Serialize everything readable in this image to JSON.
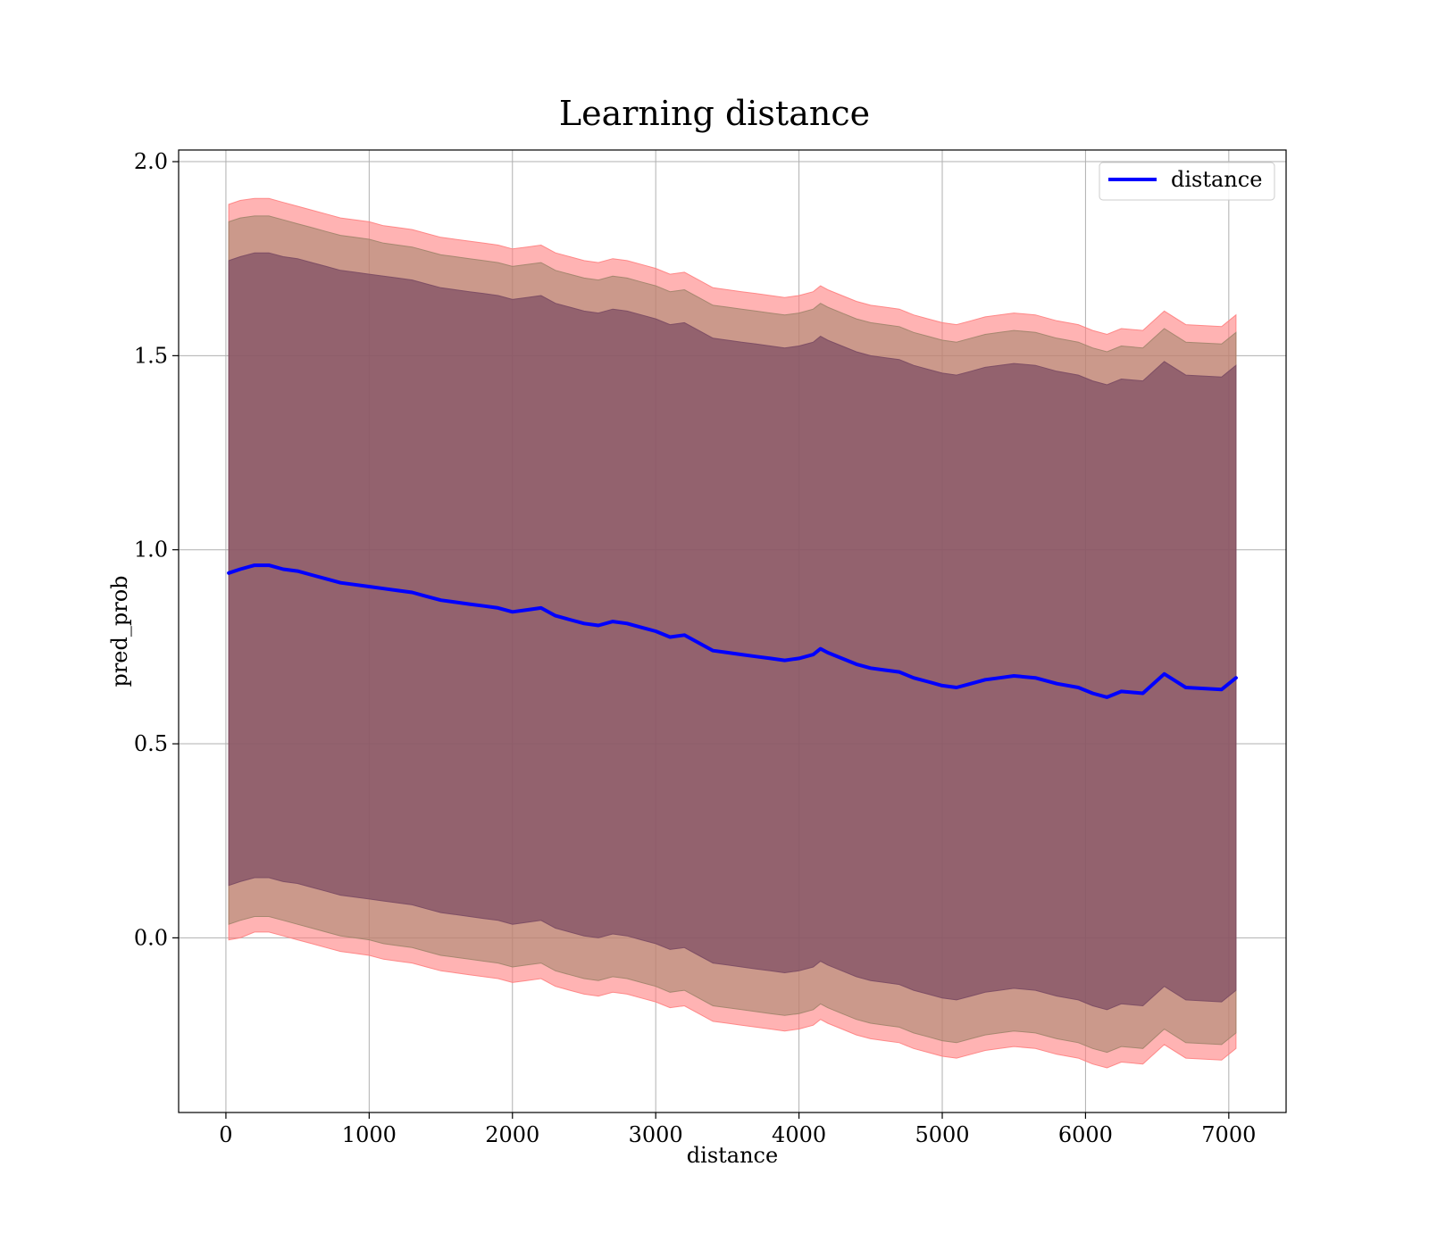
{
  "chart_data": {
    "type": "line",
    "title": "Learning distance",
    "xlabel": "distance",
    "ylabel": "pred_prob",
    "xlim": [
      -330,
      7400
    ],
    "ylim": [
      -0.45,
      2.03
    ],
    "grid": true,
    "legend_position": "top-right",
    "xticks": [
      0,
      1000,
      2000,
      3000,
      4000,
      5000,
      6000,
      7000
    ],
    "xtick_labels": [
      "0",
      "1000",
      "2000",
      "3000",
      "4000",
      "5000",
      "6000",
      "7000"
    ],
    "yticks": [
      0.0,
      0.5,
      1.0,
      1.5,
      2.0
    ],
    "ytick_labels": [
      "0.0",
      "0.5",
      "1.0",
      "1.5",
      "2.0"
    ],
    "series": [
      {
        "name": "distance",
        "color": "#0000ff",
        "x": [
          20,
          100,
          200,
          300,
          400,
          500,
          600,
          700,
          800,
          900,
          1000,
          1100,
          1200,
          1300,
          1400,
          1500,
          1600,
          1700,
          1800,
          1900,
          2000,
          2100,
          2200,
          2300,
          2400,
          2500,
          2600,
          2700,
          2800,
          2900,
          3000,
          3100,
          3200,
          3300,
          3400,
          3500,
          3600,
          3700,
          3800,
          3900,
          4000,
          4100,
          4150,
          4200,
          4300,
          4400,
          4500,
          4600,
          4700,
          4800,
          4900,
          5000,
          5100,
          5200,
          5300,
          5400,
          5500,
          5650,
          5800,
          5950,
          6050,
          6150,
          6250,
          6400,
          6550,
          6700,
          6950,
          7050
        ],
        "y": [
          0.94,
          0.95,
          0.96,
          0.96,
          0.95,
          0.945,
          0.935,
          0.925,
          0.915,
          0.91,
          0.905,
          0.9,
          0.895,
          0.89,
          0.88,
          0.87,
          0.865,
          0.86,
          0.855,
          0.85,
          0.84,
          0.845,
          0.85,
          0.83,
          0.82,
          0.81,
          0.805,
          0.815,
          0.81,
          0.8,
          0.79,
          0.775,
          0.78,
          0.76,
          0.74,
          0.735,
          0.73,
          0.725,
          0.72,
          0.715,
          0.72,
          0.73,
          0.745,
          0.735,
          0.72,
          0.705,
          0.695,
          0.69,
          0.685,
          0.67,
          0.66,
          0.65,
          0.645,
          0.655,
          0.665,
          0.67,
          0.675,
          0.67,
          0.655,
          0.645,
          0.63,
          0.62,
          0.635,
          0.63,
          0.68,
          0.645,
          0.64,
          0.67
        ]
      }
    ],
    "bands": [
      {
        "color": "#ff8080",
        "opacity": 0.6,
        "upper": [
          1.89,
          1.9,
          1.905,
          1.905,
          1.895,
          1.885,
          1.875,
          1.865,
          1.855,
          1.85,
          1.845,
          1.835,
          1.83,
          1.825,
          1.815,
          1.805,
          1.8,
          1.795,
          1.79,
          1.785,
          1.775,
          1.78,
          1.785,
          1.765,
          1.755,
          1.745,
          1.74,
          1.75,
          1.745,
          1.735,
          1.725,
          1.71,
          1.715,
          1.695,
          1.675,
          1.67,
          1.665,
          1.66,
          1.655,
          1.65,
          1.655,
          1.665,
          1.68,
          1.67,
          1.655,
          1.64,
          1.63,
          1.625,
          1.62,
          1.605,
          1.595,
          1.585,
          1.58,
          1.59,
          1.6,
          1.605,
          1.61,
          1.605,
          1.59,
          1.58,
          1.565,
          1.555,
          1.57,
          1.565,
          1.615,
          1.58,
          1.575,
          1.605
        ],
        "lower": [
          -0.005,
          -0.0,
          0.015,
          0.015,
          0.005,
          -0.005,
          -0.015,
          -0.025,
          -0.035,
          -0.04,
          -0.045,
          -0.055,
          -0.06,
          -0.065,
          -0.075,
          -0.085,
          -0.09,
          -0.095,
          -0.1,
          -0.105,
          -0.115,
          -0.11,
          -0.105,
          -0.125,
          -0.135,
          -0.145,
          -0.15,
          -0.14,
          -0.145,
          -0.155,
          -0.165,
          -0.18,
          -0.175,
          -0.195,
          -0.215,
          -0.22,
          -0.225,
          -0.23,
          -0.235,
          -0.24,
          -0.235,
          -0.225,
          -0.21,
          -0.22,
          -0.235,
          -0.25,
          -0.26,
          -0.265,
          -0.27,
          -0.285,
          -0.295,
          -0.305,
          -0.31,
          -0.3,
          -0.29,
          -0.285,
          -0.28,
          -0.285,
          -0.3,
          -0.31,
          -0.325,
          -0.335,
          -0.32,
          -0.325,
          -0.275,
          -0.31,
          -0.315,
          -0.285
        ]
      },
      {
        "color": "#a0846a",
        "opacity": 0.55,
        "upper": [
          1.845,
          1.855,
          1.86,
          1.86,
          1.85,
          1.84,
          1.83,
          1.82,
          1.81,
          1.805,
          1.8,
          1.79,
          1.785,
          1.78,
          1.77,
          1.76,
          1.755,
          1.75,
          1.745,
          1.74,
          1.73,
          1.735,
          1.74,
          1.72,
          1.71,
          1.7,
          1.695,
          1.705,
          1.7,
          1.69,
          1.68,
          1.665,
          1.67,
          1.65,
          1.63,
          1.625,
          1.62,
          1.615,
          1.61,
          1.605,
          1.61,
          1.62,
          1.635,
          1.625,
          1.61,
          1.595,
          1.585,
          1.58,
          1.575,
          1.56,
          1.55,
          1.54,
          1.535,
          1.545,
          1.555,
          1.56,
          1.565,
          1.56,
          1.545,
          1.535,
          1.52,
          1.51,
          1.525,
          1.52,
          1.57,
          1.535,
          1.53,
          1.56
        ],
        "lower": [
          0.035,
          0.045,
          0.055,
          0.055,
          0.045,
          0.035,
          0.025,
          0.015,
          0.005,
          0.0,
          -0.005,
          -0.015,
          -0.02,
          -0.025,
          -0.035,
          -0.045,
          -0.05,
          -0.055,
          -0.06,
          -0.065,
          -0.075,
          -0.07,
          -0.065,
          -0.085,
          -0.095,
          -0.105,
          -0.11,
          -0.1,
          -0.105,
          -0.115,
          -0.125,
          -0.14,
          -0.135,
          -0.155,
          -0.175,
          -0.18,
          -0.185,
          -0.19,
          -0.195,
          -0.2,
          -0.195,
          -0.185,
          -0.17,
          -0.18,
          -0.195,
          -0.21,
          -0.22,
          -0.225,
          -0.23,
          -0.245,
          -0.255,
          -0.265,
          -0.27,
          -0.26,
          -0.25,
          -0.245,
          -0.24,
          -0.245,
          -0.26,
          -0.27,
          -0.285,
          -0.295,
          -0.28,
          -0.285,
          -0.235,
          -0.27,
          -0.275,
          -0.245
        ]
      },
      {
        "color": "#7a4a63",
        "opacity": 0.7,
        "upper": [
          1.745,
          1.755,
          1.765,
          1.765,
          1.755,
          1.75,
          1.74,
          1.73,
          1.72,
          1.715,
          1.71,
          1.705,
          1.7,
          1.695,
          1.685,
          1.675,
          1.67,
          1.665,
          1.66,
          1.655,
          1.645,
          1.65,
          1.655,
          1.635,
          1.625,
          1.615,
          1.61,
          1.62,
          1.615,
          1.605,
          1.595,
          1.58,
          1.585,
          1.565,
          1.545,
          1.54,
          1.535,
          1.53,
          1.525,
          1.52,
          1.525,
          1.535,
          1.55,
          1.54,
          1.525,
          1.51,
          1.5,
          1.495,
          1.49,
          1.475,
          1.465,
          1.455,
          1.45,
          1.46,
          1.47,
          1.475,
          1.48,
          1.475,
          1.46,
          1.45,
          1.435,
          1.425,
          1.44,
          1.435,
          1.485,
          1.45,
          1.445,
          1.475
        ],
        "lower": [
          0.135,
          0.145,
          0.155,
          0.155,
          0.145,
          0.14,
          0.13,
          0.12,
          0.11,
          0.105,
          0.1,
          0.095,
          0.09,
          0.085,
          0.075,
          0.065,
          0.06,
          0.055,
          0.05,
          0.045,
          0.035,
          0.04,
          0.045,
          0.025,
          0.015,
          0.005,
          0.0,
          0.01,
          0.005,
          -0.005,
          -0.015,
          -0.03,
          -0.025,
          -0.045,
          -0.065,
          -0.07,
          -0.075,
          -0.08,
          -0.085,
          -0.09,
          -0.085,
          -0.075,
          -0.06,
          -0.07,
          -0.085,
          -0.1,
          -0.11,
          -0.115,
          -0.12,
          -0.135,
          -0.145,
          -0.155,
          -0.16,
          -0.15,
          -0.14,
          -0.135,
          -0.13,
          -0.135,
          -0.15,
          -0.16,
          -0.175,
          -0.185,
          -0.17,
          -0.175,
          -0.125,
          -0.16,
          -0.165,
          -0.135
        ]
      }
    ]
  }
}
